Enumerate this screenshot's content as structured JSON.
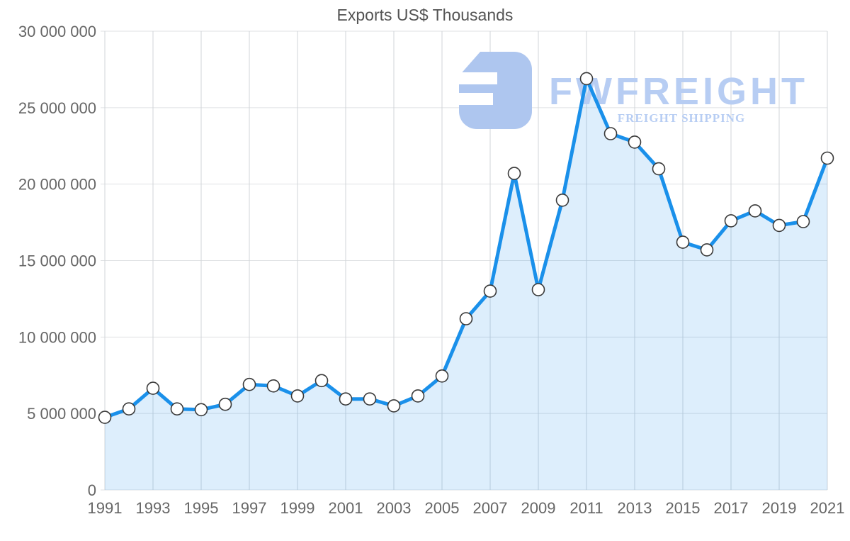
{
  "title": "Exports US$ Thousands",
  "watermark": {
    "brand": "FWFREIGHT",
    "tagline": "FREIGHT SHIPPING",
    "logo_icon": "stylized-f-freight-logo-icon"
  },
  "colors": {
    "line": "#1a90ea",
    "area_fill": "#1a90ea",
    "area_opacity": "0.15",
    "marker_fill": "#ffffff",
    "marker_stroke": "#3a3a3a",
    "grid_horizontal": "#dfe1e3",
    "grid_vertical": "#d1d5d9",
    "tick_label": "#666666",
    "title_color": "#545454",
    "watermark_text": "#b7cdf3",
    "watermark_logo": "#aec6ef"
  },
  "chart_data": {
    "type": "area",
    "title": "Exports US$ Thousands",
    "xlabel": "",
    "ylabel": "",
    "legend": "none",
    "grid": true,
    "ylim": [
      0,
      30000000
    ],
    "ytick_step": 5000000,
    "ytick_labels": [
      "0",
      "5 000 000",
      "10 000 000",
      "15 000 000",
      "20 000 000",
      "25 000 000",
      "30 000 000"
    ],
    "xtick_labels": [
      "1991",
      "1993",
      "1995",
      "1997",
      "1999",
      "2001",
      "2003",
      "2005",
      "2007",
      "2009",
      "2011",
      "2013",
      "2015",
      "2017",
      "2019",
      "2021"
    ],
    "x": [
      1991,
      1992,
      1993,
      1994,
      1995,
      1996,
      1997,
      1998,
      1999,
      2000,
      2001,
      2002,
      2003,
      2004,
      2005,
      2006,
      2007,
      2008,
      2009,
      2010,
      2011,
      2012,
      2013,
      2014,
      2015,
      2016,
      2017,
      2018,
      2019,
      2020,
      2021
    ],
    "values": [
      4750000,
      5300000,
      6650000,
      5300000,
      5250000,
      5600000,
      6900000,
      6800000,
      6150000,
      7150000,
      5950000,
      5950000,
      5500000,
      6150000,
      7450000,
      11200000,
      13000000,
      20700000,
      13100000,
      18950000,
      26900000,
      23300000,
      22750000,
      21000000,
      16200000,
      15700000,
      17600000,
      18250000,
      17300000,
      17550000,
      21700000
    ]
  }
}
